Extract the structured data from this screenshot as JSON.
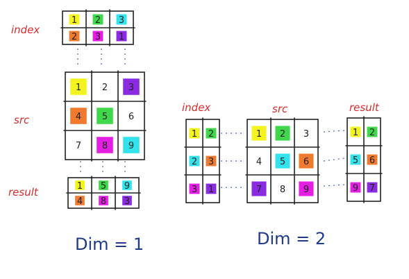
{
  "colors": {
    "yellow": "#f3f31d",
    "green": "#3fd84a",
    "cyan": "#33e3ec",
    "orange": "#f07a2e",
    "magenta": "#e41ee3",
    "purple": "#8a2be2",
    "label_red": "#d92c2c",
    "label_blue": "#1f3a8a"
  },
  "dim1": {
    "caption": "Dim = 1",
    "index": {
      "label": "index",
      "rows": [
        [
          {
            "v": "1",
            "c": "yellow"
          },
          {
            "v": "2",
            "c": "green"
          },
          {
            "v": "3",
            "c": "cyan"
          }
        ],
        [
          {
            "v": "2",
            "c": "orange"
          },
          {
            "v": "3",
            "c": "magenta"
          },
          {
            "v": "1",
            "c": "purple"
          }
        ]
      ]
    },
    "src": {
      "label": "src",
      "rows": [
        [
          {
            "v": "1",
            "c": "yellow"
          },
          {
            "v": "2",
            "c": ""
          },
          {
            "v": "3",
            "c": "purple"
          }
        ],
        [
          {
            "v": "4",
            "c": "orange"
          },
          {
            "v": "5",
            "c": "green"
          },
          {
            "v": "6",
            "c": ""
          }
        ],
        [
          {
            "v": "7",
            "c": ""
          },
          {
            "v": "8",
            "c": "magenta"
          },
          {
            "v": "9",
            "c": "cyan"
          }
        ]
      ]
    },
    "result": {
      "label": "result",
      "rows": [
        [
          {
            "v": "1",
            "c": "yellow"
          },
          {
            "v": "5",
            "c": "green"
          },
          {
            "v": "9",
            "c": "cyan"
          }
        ],
        [
          {
            "v": "4",
            "c": "orange"
          },
          {
            "v": "8",
            "c": "magenta"
          },
          {
            "v": "3",
            "c": "purple"
          }
        ]
      ]
    }
  },
  "dim2": {
    "caption": "Dim = 2",
    "index": {
      "label": "index",
      "rows": [
        [
          {
            "v": "1",
            "c": "yellow"
          },
          {
            "v": "2",
            "c": "green"
          }
        ],
        [
          {
            "v": "2",
            "c": "cyan"
          },
          {
            "v": "3",
            "c": "orange"
          }
        ],
        [
          {
            "v": "3",
            "c": "magenta"
          },
          {
            "v": "1",
            "c": "purple"
          }
        ]
      ]
    },
    "src": {
      "label": "src",
      "rows": [
        [
          {
            "v": "1",
            "c": "yellow"
          },
          {
            "v": "2",
            "c": "green"
          },
          {
            "v": "3",
            "c": ""
          }
        ],
        [
          {
            "v": "4",
            "c": ""
          },
          {
            "v": "5",
            "c": "cyan"
          },
          {
            "v": "6",
            "c": "orange"
          }
        ],
        [
          {
            "v": "7",
            "c": "purple"
          },
          {
            "v": "8",
            "c": ""
          },
          {
            "v": "9",
            "c": "magenta"
          }
        ]
      ]
    },
    "result": {
      "label": "result",
      "rows": [
        [
          {
            "v": "1",
            "c": "yellow"
          },
          {
            "v": "2",
            "c": "green"
          }
        ],
        [
          {
            "v": "5",
            "c": "cyan"
          },
          {
            "v": "6",
            "c": "orange"
          }
        ],
        [
          {
            "v": "9",
            "c": "magenta"
          },
          {
            "v": "7",
            "c": "purple"
          }
        ]
      ]
    }
  }
}
